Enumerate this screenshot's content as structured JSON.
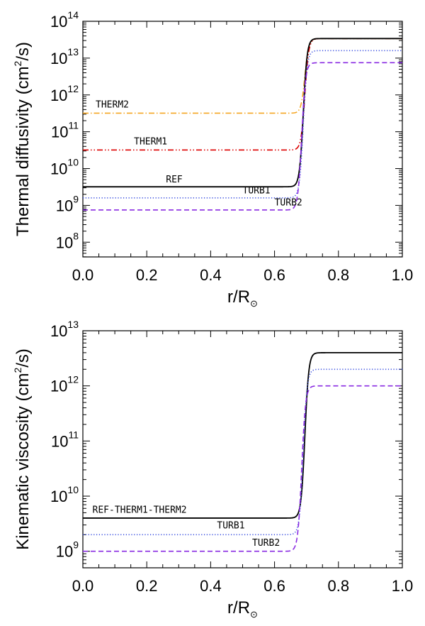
{
  "chart_data": [
    {
      "type": "line",
      "ylabel": "Thermal diffusivity",
      "ylabel_units": "(cm",
      "ylabel_units_power": "2",
      "ylabel_units_end": "/s)",
      "xlabel": "r/R",
      "xlabel_subscript": "⊙",
      "xlim": [
        0.0,
        1.0
      ],
      "ylim_log10": [
        7.6,
        14.0
      ],
      "yscale": "log",
      "x_ticks": [
        "0.0",
        "0.2",
        "0.4",
        "0.6",
        "0.8",
        "1.0"
      ],
      "y_ticks": [
        {
          "exp": 8,
          "base": "10",
          "power": "8"
        },
        {
          "exp": 9,
          "base": "10",
          "power": "9"
        },
        {
          "exp": 10,
          "base": "10",
          "power": "10"
        },
        {
          "exp": 11,
          "base": "10",
          "power": "11"
        },
        {
          "exp": 12,
          "base": "10",
          "power": "12"
        },
        {
          "exp": 13,
          "base": "10",
          "power": "13"
        },
        {
          "exp": 14,
          "base": "10",
          "power": "14"
        }
      ],
      "series": [
        {
          "name": "THERM2",
          "color": "#f5a623",
          "dash": "dashdot",
          "x_transition": 0.695,
          "y_inner": 320000000000.0,
          "y_outer": 34000000000000.0,
          "label_x": 0.04,
          "label_y": 450000000000.0
        },
        {
          "name": "THERM1",
          "color": "#dd0000",
          "dash": "dashdotdot",
          "x_transition": 0.695,
          "y_inner": 32000000000.0,
          "y_outer": 34000000000000.0,
          "label_x": 0.16,
          "label_y": 45000000000.0
        },
        {
          "name": "REF",
          "color": "#000000",
          "dash": "solid",
          "x_transition": 0.69,
          "y_inner": 3200000000.0,
          "y_outer": 34000000000000.0,
          "label_x": 0.26,
          "label_y": 4200000000.0
        },
        {
          "name": "TURB1",
          "color": "#3a4fe0",
          "dash": "dotted",
          "x_transition": 0.69,
          "y_inner": 1600000000.0,
          "y_outer": 16000000000000.0,
          "label_x": 0.5,
          "label_y": 2100000000.0
        },
        {
          "name": "TURB2",
          "color": "#8a2be2",
          "dash": "dashed",
          "x_transition": 0.685,
          "y_inner": 750000000.0,
          "y_outer": 7500000000000.0,
          "label_x": 0.6,
          "label_y": 1000000000.0
        }
      ]
    },
    {
      "type": "line",
      "ylabel": "Kinematic viscosity",
      "ylabel_units": "(cm",
      "ylabel_units_power": "2",
      "ylabel_units_end": "/s)",
      "xlabel": "r/R",
      "xlabel_subscript": "⊙",
      "xlim": [
        0.0,
        1.0
      ],
      "ylim_log10": [
        8.7,
        13.0
      ],
      "yscale": "log",
      "x_ticks": [
        "0.0",
        "0.2",
        "0.4",
        "0.6",
        "0.8",
        "1.0"
      ],
      "y_ticks": [
        {
          "exp": 9,
          "base": "10",
          "power": "9"
        },
        {
          "exp": 10,
          "base": "10",
          "power": "10"
        },
        {
          "exp": 11,
          "base": "10",
          "power": "11"
        },
        {
          "exp": 12,
          "base": "10",
          "power": "12"
        },
        {
          "exp": 13,
          "base": "10",
          "power": "13"
        }
      ],
      "series": [
        {
          "name": "REF-THERM1-THERM2",
          "color": "#000000",
          "dash": "solid",
          "x_transition": 0.695,
          "y_inner": 4000000000.0,
          "y_outer": 4000000000000.0,
          "label_x": 0.03,
          "label_y": 5000000000.0
        },
        {
          "name": "TURB1",
          "color": "#3a4fe0",
          "dash": "dotted",
          "x_transition": 0.69,
          "y_inner": 2000000000.0,
          "y_outer": 2000000000000.0,
          "label_x": 0.42,
          "label_y": 2600000000.0
        },
        {
          "name": "TURB2",
          "color": "#8a2be2",
          "dash": "dashed",
          "x_transition": 0.685,
          "y_inner": 1000000000.0,
          "y_outer": 1000000000000.0,
          "label_x": 0.53,
          "label_y": 1250000000.0
        }
      ]
    }
  ]
}
